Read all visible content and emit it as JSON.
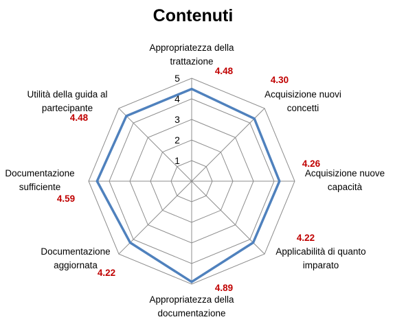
{
  "chart_data": {
    "type": "radar",
    "title": "Contenuti",
    "categories": [
      [
        "Appropriatezza della",
        "trattazione"
      ],
      [
        "Acquisizione nuovi",
        "concetti"
      ],
      [
        "Acquisizione nuove",
        "capacità"
      ],
      [
        "Applicabilità di quanto",
        "imparato"
      ],
      [
        "Appropriatezza della",
        "documentazione"
      ],
      [
        "Documentazione",
        "aggiornata"
      ],
      [
        "Documentazione",
        "sufficiente"
      ],
      [
        "Utilità della guida al",
        "partecipante"
      ]
    ],
    "values": [
      4.48,
      4.3,
      4.26,
      4.22,
      4.89,
      4.22,
      4.59,
      4.48
    ],
    "value_labels": [
      "4.48",
      "4.30",
      "4.26",
      "4.22",
      "4.89",
      "4.22",
      "4.59",
      "4.48"
    ],
    "rlim": [
      0,
      5
    ],
    "ticks": [
      1,
      2,
      3,
      4,
      5
    ],
    "grid": true,
    "legend": "none",
    "series_color": "#4f81bd",
    "label_color": "#c00000",
    "grid_color": "#8c8c8c"
  }
}
